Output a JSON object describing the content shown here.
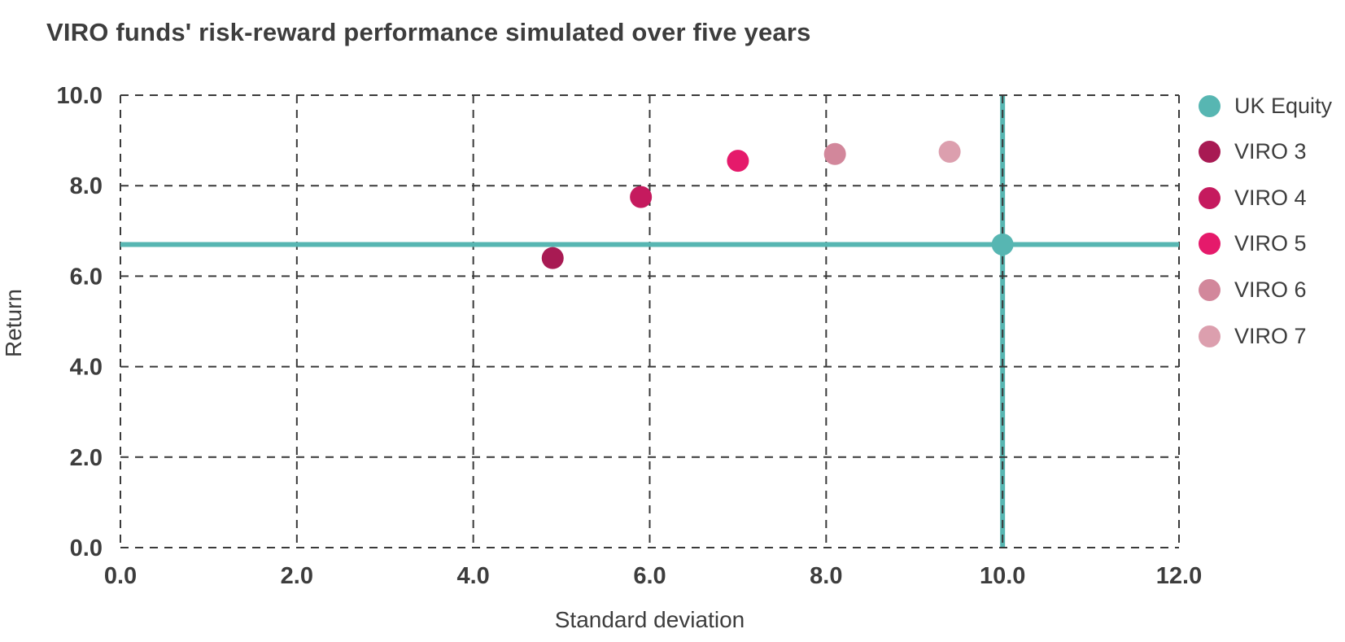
{
  "title": "VIRO funds' risk-reward performance simulated over five years",
  "colors": {
    "text": "#3d3d3d",
    "grid": "#3a3a3a",
    "accent_teal": "#57b6b2"
  },
  "chart_data": {
    "type": "scatter",
    "title": "VIRO funds' risk-reward performance simulated over five years",
    "xlabel": "Standard deviation",
    "ylabel": "Return",
    "xlim": [
      0.0,
      12.0
    ],
    "ylim": [
      0.0,
      10.0
    ],
    "xticks": [
      0.0,
      2.0,
      4.0,
      6.0,
      8.0,
      10.0,
      12.0
    ],
    "yticks": [
      0.0,
      2.0,
      4.0,
      6.0,
      8.0,
      10.0
    ],
    "tick_decimals": 1,
    "grid": "dashed",
    "legend_position": "right",
    "series": [
      {
        "name": "UK Equity",
        "color": "#57b6b2",
        "x": 10.0,
        "y": 6.7,
        "crosshair": true
      },
      {
        "name": "VIRO 3",
        "color": "#a81a53",
        "x": 4.9,
        "y": 6.4,
        "crosshair": false
      },
      {
        "name": "VIRO 4",
        "color": "#c51a5e",
        "x": 5.9,
        "y": 7.75,
        "crosshair": false
      },
      {
        "name": "VIRO 5",
        "color": "#e51a6b",
        "x": 7.0,
        "y": 8.55,
        "crosshair": false
      },
      {
        "name": "VIRO 6",
        "color": "#d2879b",
        "x": 8.1,
        "y": 8.7,
        "crosshair": false
      },
      {
        "name": "VIRO 7",
        "color": "#dc9fae",
        "x": 9.4,
        "y": 8.75,
        "crosshair": false
      }
    ]
  }
}
